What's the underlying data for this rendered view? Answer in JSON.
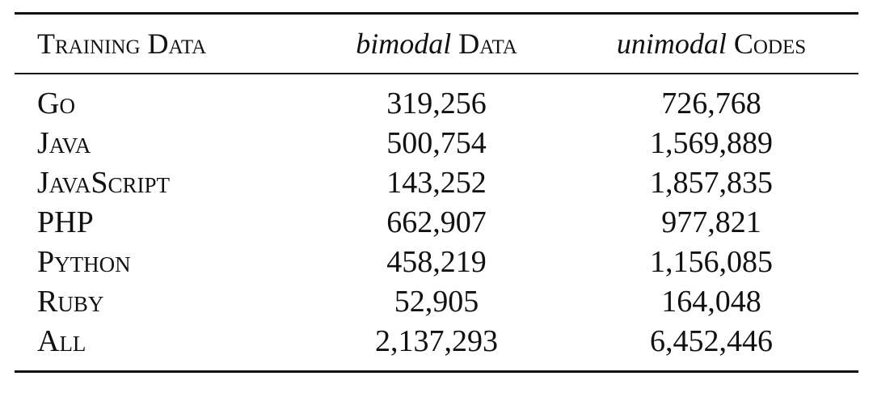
{
  "table": {
    "header": [
      {
        "text": "Training Data"
      },
      {
        "italic": "bimodal",
        "text": "Data"
      },
      {
        "italic": "unimodal",
        "text": "Codes"
      }
    ],
    "rows": [
      [
        "Go",
        "319,256",
        "726,768"
      ],
      [
        "Java",
        "500,754",
        "1,569,889"
      ],
      [
        "JavaScript",
        "143,252",
        "1,857,835"
      ],
      [
        "PHP",
        "662,907",
        "977,821"
      ],
      [
        "Python",
        "458,219",
        "1,156,085"
      ],
      [
        "Ruby",
        "52,905",
        "164,048"
      ],
      [
        "All",
        "2,137,293",
        "6,452,446"
      ]
    ]
  }
}
